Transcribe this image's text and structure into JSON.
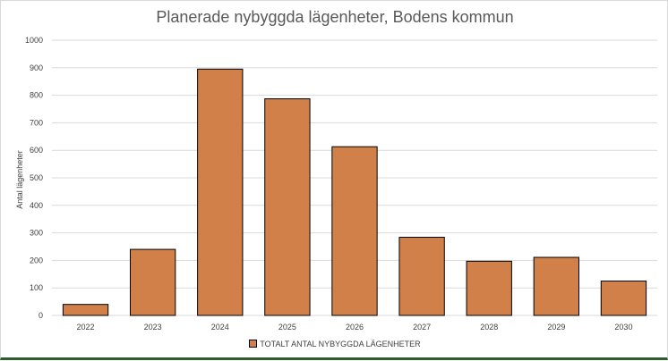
{
  "chart_data": {
    "type": "bar",
    "title": "Planerade nybyggda lägenheter, Bodens kommun",
    "xlabel": "",
    "ylabel": "Antal lägenheter",
    "categories": [
      "2022",
      "2023",
      "2024",
      "2025",
      "2026",
      "2027",
      "2028",
      "2029",
      "2030"
    ],
    "series": [
      {
        "name": "TOTALT ANTAL NYBYGGDA LÄGENHETER",
        "values": [
          40,
          240,
          895,
          787,
          613,
          284,
          197,
          211,
          125
        ]
      }
    ],
    "ylim": [
      0,
      1000
    ],
    "yticks": [
      "0",
      "100",
      "200",
      "300",
      "400",
      "500",
      "600",
      "700",
      "800",
      "900",
      "1000"
    ],
    "grid": true,
    "legend_position": "bottom",
    "colors": {
      "bar": "#d2804a",
      "bar_border": "#000000",
      "grid": "#d9d9d9"
    }
  }
}
